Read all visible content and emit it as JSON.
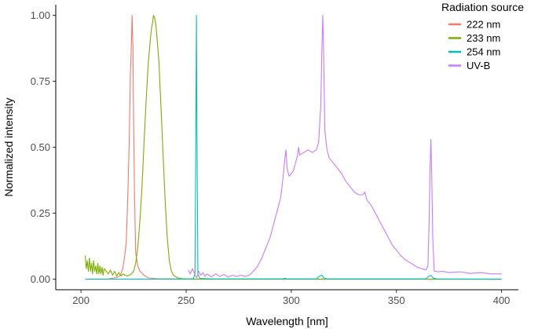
{
  "chart_data": {
    "type": "line",
    "title": "",
    "xlabel": "Wavelength [nm]",
    "ylabel": "Normalized intensity",
    "xlim": [
      188,
      408
    ],
    "ylim": [
      -0.04,
      1.04
    ],
    "xticks": [
      200,
      250,
      300,
      350,
      400
    ],
    "yticks": [
      0.0,
      0.25,
      0.5,
      0.75,
      1.0
    ],
    "xtick_labels": [
      "200",
      "250",
      "300",
      "350",
      "400"
    ],
    "ytick_labels": [
      "0.00",
      "0.25",
      "0.50",
      "0.75",
      "1.00"
    ],
    "grid": false,
    "legend": {
      "title": "Radiation source",
      "position": "top-right"
    },
    "series": [
      {
        "name": "222 nm",
        "color": "#F8766D",
        "points": [
          [
            202,
            0.0
          ],
          [
            212,
            0.0
          ],
          [
            216,
            0.005
          ],
          [
            218,
            0.01
          ],
          [
            219,
            0.02
          ],
          [
            220,
            0.045
          ],
          [
            221,
            0.1
          ],
          [
            221.5,
            0.14
          ],
          [
            222,
            0.25
          ],
          [
            222.5,
            0.38
          ],
          [
            223,
            0.55
          ],
          [
            223.5,
            0.78
          ],
          [
            224,
            0.9
          ],
          [
            224.3,
            1.0
          ],
          [
            224.7,
            0.88
          ],
          [
            225,
            0.6
          ],
          [
            225.5,
            0.3
          ],
          [
            226,
            0.1
          ],
          [
            227,
            0.05
          ],
          [
            228,
            0.03
          ],
          [
            230,
            0.015
          ],
          [
            232,
            0.005
          ],
          [
            236,
            0.002
          ],
          [
            245,
            0.001
          ],
          [
            260,
            0.0
          ],
          [
            400,
            0.0
          ]
        ]
      },
      {
        "name": "233 nm",
        "color": "#7CAE00",
        "points": [
          [
            202,
            0.09
          ],
          [
            202.5,
            0.04
          ],
          [
            203,
            0.07
          ],
          [
            203.5,
            0.03
          ],
          [
            204,
            0.08
          ],
          [
            204.5,
            0.03
          ],
          [
            205,
            0.06
          ],
          [
            205.5,
            0.02
          ],
          [
            206,
            0.07
          ],
          [
            206.5,
            0.03
          ],
          [
            207,
            0.05
          ],
          [
            207.5,
            0.02
          ],
          [
            208,
            0.06
          ],
          [
            208.5,
            0.02
          ],
          [
            209,
            0.05
          ],
          [
            209.5,
            0.02
          ],
          [
            210,
            0.045
          ],
          [
            210.5,
            0.015
          ],
          [
            211,
            0.04
          ],
          [
            212,
            0.03
          ],
          [
            213,
            0.02
          ],
          [
            214,
            0.035
          ],
          [
            215,
            0.015
          ],
          [
            216,
            0.03
          ],
          [
            217,
            0.012
          ],
          [
            218,
            0.025
          ],
          [
            219,
            0.012
          ],
          [
            220,
            0.02
          ],
          [
            221,
            0.015
          ],
          [
            222,
            0.012
          ],
          [
            223,
            0.015
          ],
          [
            224,
            0.02
          ],
          [
            225,
            0.03
          ],
          [
            226,
            0.06
          ],
          [
            227,
            0.12
          ],
          [
            228,
            0.22
          ],
          [
            229,
            0.35
          ],
          [
            230,
            0.52
          ],
          [
            231,
            0.68
          ],
          [
            232,
            0.82
          ],
          [
            233,
            0.91
          ],
          [
            233.5,
            0.95
          ],
          [
            234,
            0.97
          ],
          [
            234.5,
            1.0
          ],
          [
            235,
            0.99
          ],
          [
            235.5,
            0.97
          ],
          [
            236,
            0.93
          ],
          [
            237,
            0.83
          ],
          [
            238,
            0.66
          ],
          [
            239,
            0.48
          ],
          [
            240,
            0.3
          ],
          [
            241,
            0.16
          ],
          [
            242,
            0.07
          ],
          [
            243,
            0.03
          ],
          [
            244,
            0.015
          ],
          [
            246,
            0.005
          ],
          [
            248,
            0.002
          ],
          [
            252,
            0.0
          ],
          [
            400,
            0.0
          ]
        ]
      },
      {
        "name": "254 nm",
        "color": "#00BFC4",
        "points": [
          [
            202,
            0.0
          ],
          [
            250,
            0.0
          ],
          [
            253.5,
            0.002
          ],
          [
            254.2,
            0.02
          ],
          [
            254.6,
            0.5
          ],
          [
            254.9,
            1.0
          ],
          [
            255.2,
            0.5
          ],
          [
            255.6,
            0.02
          ],
          [
            256.5,
            0.003
          ],
          [
            262,
            0.001
          ],
          [
            296,
            0.001
          ],
          [
            297,
            0.003
          ],
          [
            298,
            0.001
          ],
          [
            312,
            0.001
          ],
          [
            313.5,
            0.012
          ],
          [
            314.5,
            0.015
          ],
          [
            315.5,
            0.005
          ],
          [
            317,
            0.001
          ],
          [
            364,
            0.001
          ],
          [
            365.5,
            0.012
          ],
          [
            366.5,
            0.014
          ],
          [
            367.5,
            0.004
          ],
          [
            369,
            0.001
          ],
          [
            400,
            0.0
          ]
        ]
      },
      {
        "name": "UV-B",
        "color": "#C77CFF",
        "points": [
          [
            251,
            0.035
          ],
          [
            252,
            0.02
          ],
          [
            253,
            0.04
          ],
          [
            254,
            0.02
          ],
          [
            255,
            0.005
          ],
          [
            256,
            0.03
          ],
          [
            257,
            0.015
          ],
          [
            258,
            0.025
          ],
          [
            259,
            0.01
          ],
          [
            260,
            0.02
          ],
          [
            262,
            0.008
          ],
          [
            264,
            0.02
          ],
          [
            266,
            0.01
          ],
          [
            268,
            0.018
          ],
          [
            270,
            0.008
          ],
          [
            272,
            0.015
          ],
          [
            274,
            0.01
          ],
          [
            276,
            0.015
          ],
          [
            278,
            0.01
          ],
          [
            280,
            0.015
          ],
          [
            282,
            0.03
          ],
          [
            284,
            0.05
          ],
          [
            286,
            0.08
          ],
          [
            288,
            0.12
          ],
          [
            290,
            0.16
          ],
          [
            292,
            0.22
          ],
          [
            294,
            0.28
          ],
          [
            295,
            0.31
          ],
          [
            296,
            0.38
          ],
          [
            297,
            0.46
          ],
          [
            297.5,
            0.49
          ],
          [
            298,
            0.42
          ],
          [
            299,
            0.39
          ],
          [
            300,
            0.4
          ],
          [
            301,
            0.41
          ],
          [
            302,
            0.44
          ],
          [
            303,
            0.47
          ],
          [
            303.5,
            0.5
          ],
          [
            304,
            0.47
          ],
          [
            306,
            0.48
          ],
          [
            308,
            0.49
          ],
          [
            310,
            0.48
          ],
          [
            312,
            0.49
          ],
          [
            313,
            0.52
          ],
          [
            314,
            0.65
          ],
          [
            314.6,
            0.88
          ],
          [
            315,
            1.0
          ],
          [
            315.4,
            0.85
          ],
          [
            316,
            0.56
          ],
          [
            317,
            0.49
          ],
          [
            318,
            0.46
          ],
          [
            320,
            0.44
          ],
          [
            322,
            0.42
          ],
          [
            324,
            0.4
          ],
          [
            326,
            0.37
          ],
          [
            328,
            0.35
          ],
          [
            330,
            0.33
          ],
          [
            332,
            0.32
          ],
          [
            334,
            0.32
          ],
          [
            335,
            0.33
          ],
          [
            336,
            0.3
          ],
          [
            338,
            0.28
          ],
          [
            340,
            0.25
          ],
          [
            342,
            0.22
          ],
          [
            344,
            0.19
          ],
          [
            346,
            0.16
          ],
          [
            348,
            0.13
          ],
          [
            350,
            0.11
          ],
          [
            352,
            0.09
          ],
          [
            354,
            0.075
          ],
          [
            356,
            0.065
          ],
          [
            358,
            0.055
          ],
          [
            360,
            0.045
          ],
          [
            362,
            0.04
          ],
          [
            364,
            0.035
          ],
          [
            365,
            0.05
          ],
          [
            365.5,
            0.2
          ],
          [
            366,
            0.42
          ],
          [
            366.4,
            0.53
          ],
          [
            366.8,
            0.4
          ],
          [
            367.3,
            0.15
          ],
          [
            368,
            0.03
          ],
          [
            370,
            0.028
          ],
          [
            372,
            0.03
          ],
          [
            375,
            0.025
          ],
          [
            380,
            0.028
          ],
          [
            385,
            0.022
          ],
          [
            390,
            0.025
          ],
          [
            395,
            0.02
          ],
          [
            400,
            0.02
          ]
        ]
      }
    ]
  }
}
